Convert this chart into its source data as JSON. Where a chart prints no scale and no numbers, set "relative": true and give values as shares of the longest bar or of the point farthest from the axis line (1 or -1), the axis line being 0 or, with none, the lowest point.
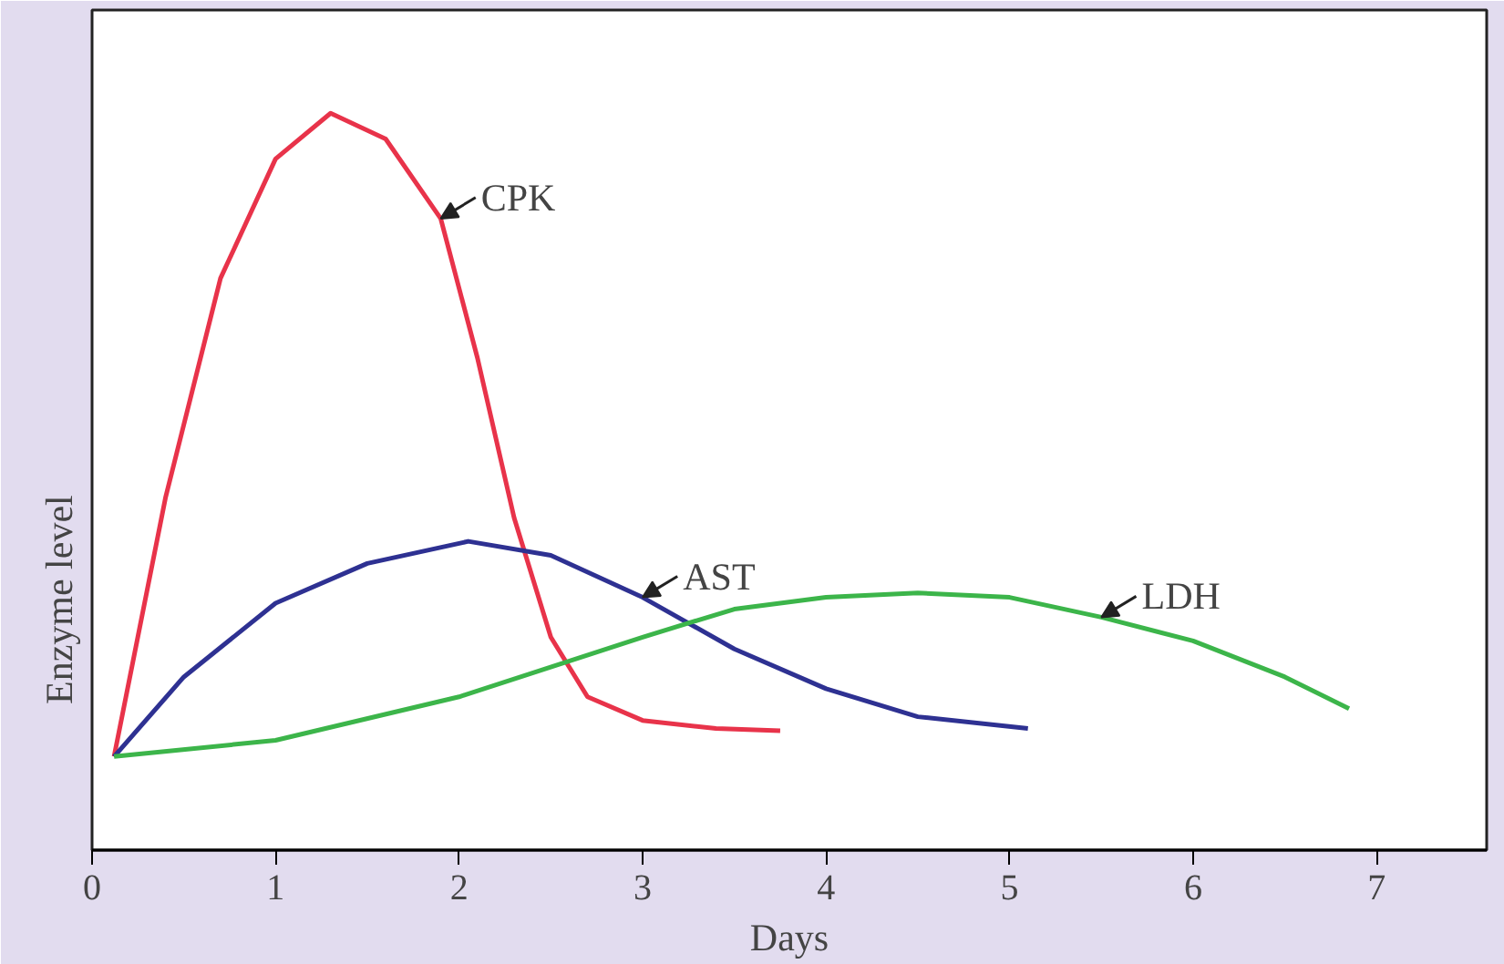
{
  "chart_data": {
    "type": "line",
    "relative": true,
    "xlabel": "Days",
    "ylabel": "Enzyme level",
    "xlim": [
      0,
      7.6
    ],
    "xticks": [
      0,
      1,
      2,
      3,
      4,
      5,
      6,
      7
    ],
    "grid": false,
    "marker": "none",
    "line_style": "solid",
    "series": [
      {
        "name": "CPK",
        "color": "#e8334a",
        "x": [
          0.12,
          0.4,
          0.7,
          1,
          1.3,
          1.6,
          1.9,
          2.1,
          2.3,
          2.5,
          2.7,
          3.0,
          3.4,
          3.75
        ],
        "values": [
          0.127,
          0.478,
          0.776,
          0.938,
          1,
          0.965,
          0.857,
          0.668,
          0.451,
          0.289,
          0.208,
          0.176,
          0.165,
          0.162
        ]
      },
      {
        "name": "AST",
        "color": "#2e3192",
        "x": [
          0.12,
          0.5,
          1,
          1.5,
          2.05,
          2.5,
          3,
          3.5,
          4,
          4.5,
          5.1
        ],
        "values": [
          0.127,
          0.235,
          0.335,
          0.389,
          0.419,
          0.4,
          0.343,
          0.273,
          0.219,
          0.181,
          0.165
        ]
      },
      {
        "name": "LDH",
        "color": "#3cb54a",
        "x": [
          0.12,
          1,
          2,
          3,
          3.5,
          4,
          4.5,
          5,
          5.5,
          6,
          6.5,
          6.85
        ],
        "values": [
          0.127,
          0.149,
          0.208,
          0.289,
          0.327,
          0.343,
          0.349,
          0.343,
          0.316,
          0.284,
          0.235,
          0.192
        ]
      }
    ]
  }
}
